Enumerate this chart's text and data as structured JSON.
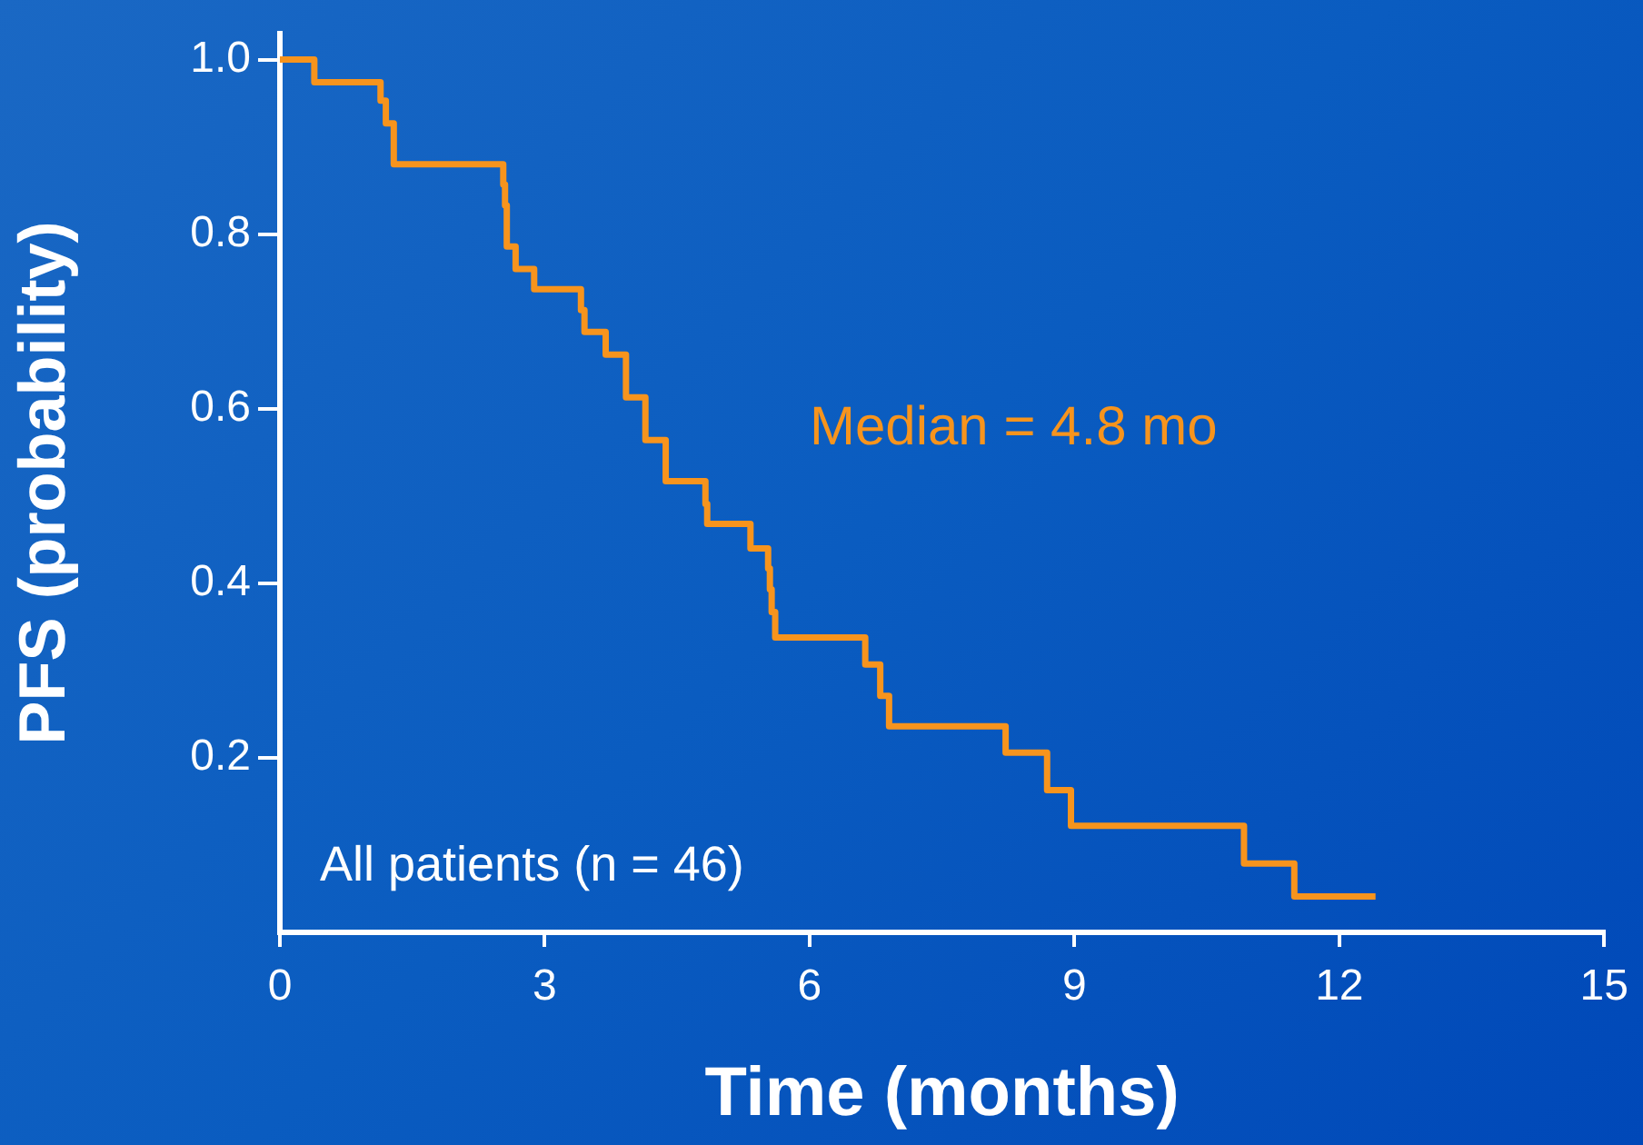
{
  "chart_data": {
    "type": "step",
    "xlabel": "Time (months)",
    "ylabel": "PFS (probability)",
    "annotations": [
      "Median = 4.8 mo",
      "All patients (n = 46)"
    ],
    "xlim": [
      0,
      15
    ],
    "xticks": [
      0,
      3,
      6,
      9,
      12,
      15
    ],
    "ylim": [
      0,
      1.03
    ],
    "yticks": [
      0.2,
      0.4,
      0.6,
      0.8,
      {
        "value": 1,
        "label": "1.0"
      }
    ],
    "grid": false,
    "legend": false,
    "series": [
      {
        "color": "#f7941d",
        "x": [
          0,
          0.39,
          1.14,
          1.2,
          1.29,
          2.53,
          2.55,
          2.57,
          2.61,
          2.67,
          2.88,
          3.41,
          3.45,
          3.69,
          3.92,
          4.14,
          4.37,
          4.82,
          4.84,
          5.33,
          5.53,
          5.55,
          5.57,
          5.61,
          6.63,
          6.8,
          6.9,
          8.22,
          8.69,
          8.96,
          10.92,
          11.49,
          12.41
        ],
        "values": [
          1.0,
          0.974,
          0.953,
          0.927,
          0.88,
          0.857,
          0.833,
          0.786,
          0.786,
          0.76,
          0.737,
          0.713,
          0.688,
          0.662,
          0.613,
          0.564,
          0.517,
          0.491,
          0.468,
          0.44,
          0.417,
          0.393,
          0.367,
          0.338,
          0.307,
          0.271,
          0.236,
          0.206,
          0.163,
          0.122,
          0.079,
          0.041,
          0.041
        ]
      }
    ]
  }
}
